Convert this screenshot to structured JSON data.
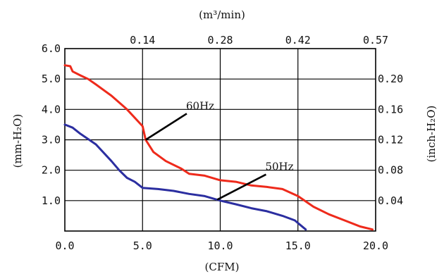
{
  "chart_data": {
    "type": "line",
    "xlabel_bottom": "(CFM)",
    "xlabel_top": "(m³/min)",
    "ylabel_left": "(mm-H₂O)",
    "ylabel_right": "(inch-H₂O)",
    "xlim": [
      0,
      20
    ],
    "ylim": [
      0,
      6
    ],
    "x_ticks": [
      "0.0",
      "5.0",
      "10.0",
      "15.0",
      "20.0"
    ],
    "x_ticks_top": [
      "0.14",
      "0.28",
      "0.42",
      "0.57"
    ],
    "y_ticks_left": [
      "1.0",
      "2.0",
      "3.0",
      "4.0",
      "5.0",
      "6.0"
    ],
    "y_ticks_right": [
      "0.04",
      "0.08",
      "0.12",
      "0.16",
      "0.20"
    ],
    "grid": true,
    "series": [
      {
        "name": "60Hz",
        "color": "#ee2a1b",
        "points": [
          [
            0,
            5.45
          ],
          [
            0.35,
            5.42
          ],
          [
            0.5,
            5.25
          ],
          [
            1,
            5.12
          ],
          [
            1.5,
            5.0
          ],
          [
            2,
            4.82
          ],
          [
            3,
            4.45
          ],
          [
            4,
            4.0
          ],
          [
            5,
            3.45
          ],
          [
            5.2,
            3.0
          ],
          [
            5.7,
            2.6
          ],
          [
            6.5,
            2.3
          ],
          [
            7.5,
            2.05
          ],
          [
            8,
            1.88
          ],
          [
            9,
            1.82
          ],
          [
            10,
            1.67
          ],
          [
            11,
            1.62
          ],
          [
            12,
            1.5
          ],
          [
            13,
            1.45
          ],
          [
            14,
            1.38
          ],
          [
            15,
            1.15
          ],
          [
            16,
            0.8
          ],
          [
            17,
            0.55
          ],
          [
            18,
            0.35
          ],
          [
            19,
            0.15
          ],
          [
            19.8,
            0.05
          ]
        ]
      },
      {
        "name": "50Hz",
        "color": "#2b2ea0",
        "points": [
          [
            0,
            3.5
          ],
          [
            0.5,
            3.4
          ],
          [
            1,
            3.2
          ],
          [
            2,
            2.85
          ],
          [
            3,
            2.3
          ],
          [
            3.5,
            2.0
          ],
          [
            4,
            1.75
          ],
          [
            4.5,
            1.62
          ],
          [
            5,
            1.42
          ],
          [
            6,
            1.38
          ],
          [
            7,
            1.32
          ],
          [
            8,
            1.22
          ],
          [
            9,
            1.15
          ],
          [
            10,
            1.0
          ],
          [
            11,
            0.88
          ],
          [
            12,
            0.75
          ],
          [
            13,
            0.65
          ],
          [
            14,
            0.5
          ],
          [
            14.8,
            0.35
          ],
          [
            15.5,
            0.05
          ]
        ]
      }
    ],
    "annotations": [
      {
        "text": "60Hz",
        "x": 7.8,
        "y": 4.0
      },
      {
        "text": "50Hz",
        "x": 12.9,
        "y": 2.0
      }
    ]
  }
}
